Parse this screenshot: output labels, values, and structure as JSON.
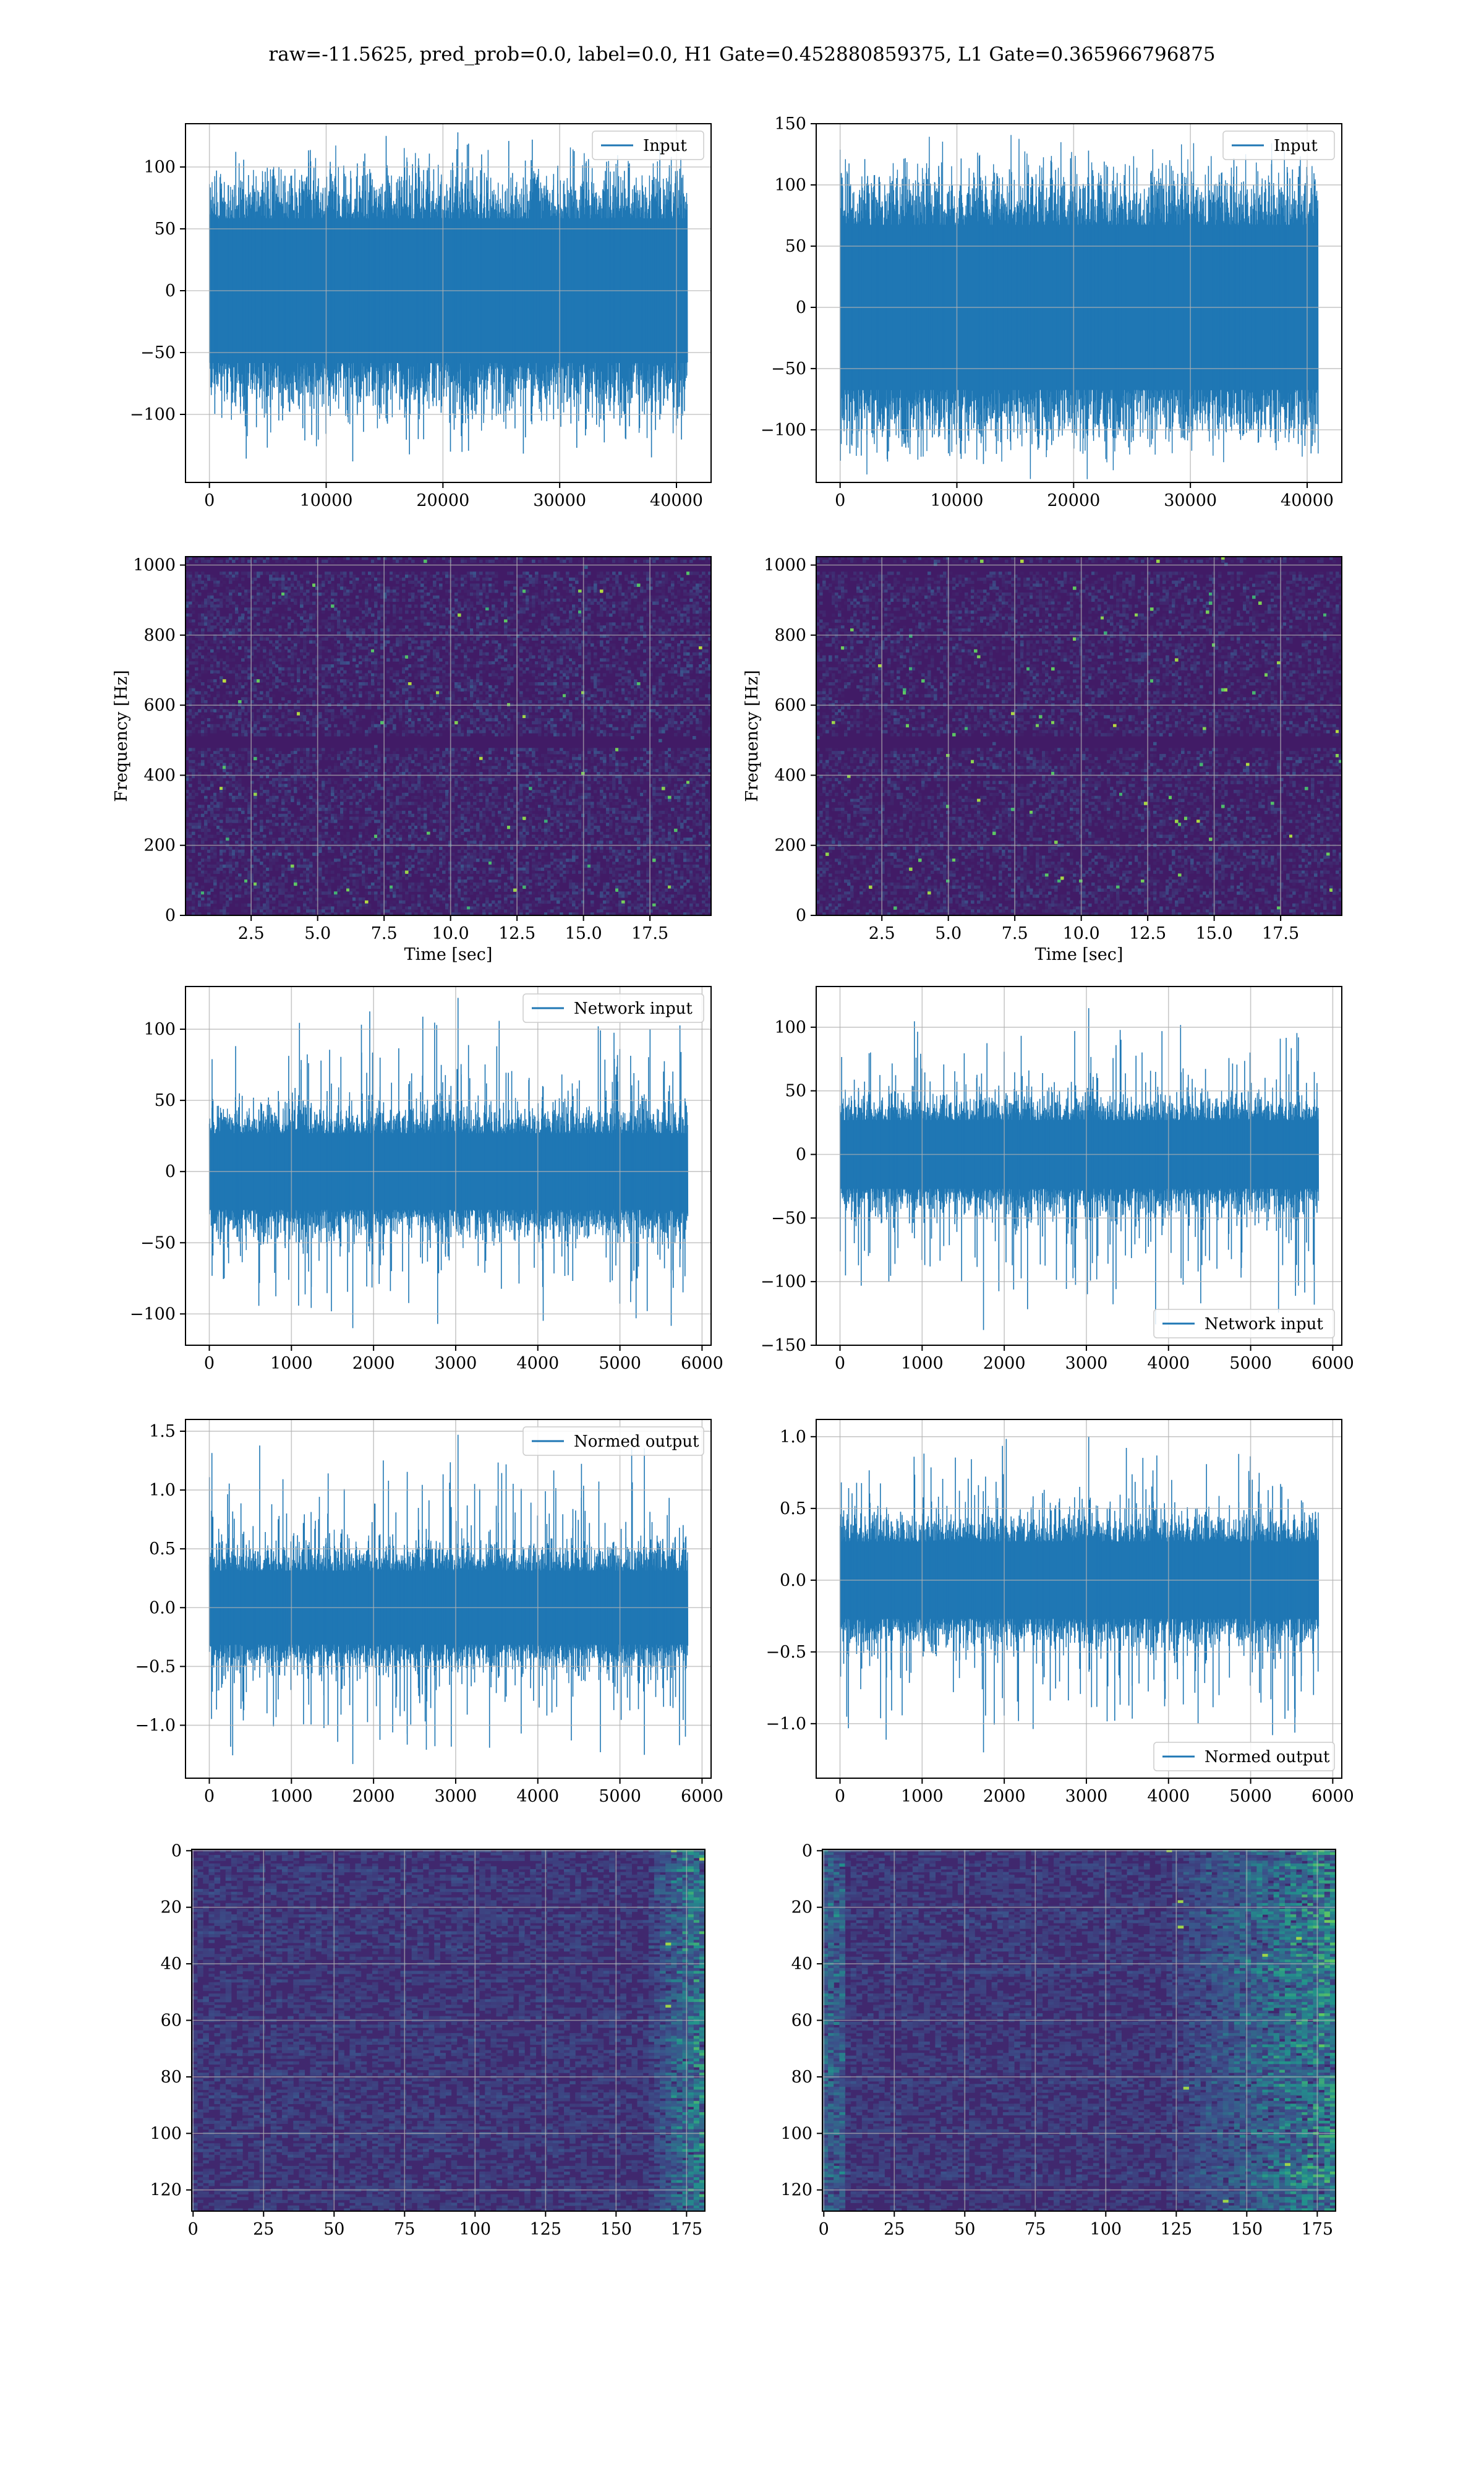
{
  "figure": {
    "suptitle": "raw=-11.5625, pred_prob=0.0, label=0.0, H1 Gate=0.452880859375, L1 Gate=0.365966796875"
  },
  "colors": {
    "line": "#1f77b4",
    "grid": "#b0b0b0",
    "viridis_low": "#440154",
    "viridis_mid": "#21918c",
    "viridis_high": "#fde725"
  },
  "chart_data": [
    {
      "id": "h1-input",
      "type": "line",
      "title": "",
      "xlabel": "",
      "ylabel": "",
      "xlim": [
        -2048,
        42966
      ],
      "ylim": [
        -155,
        135
      ],
      "xticks": [
        0,
        10000,
        20000,
        30000,
        40000
      ],
      "xtick_labels": [
        "0",
        "10000",
        "20000",
        "30000",
        "40000"
      ],
      "yticks": [
        -100,
        -50,
        0,
        50,
        100
      ],
      "ytick_labels": [
        "−100",
        "−50",
        "0",
        "50",
        "100"
      ],
      "grid": true,
      "legend_position": "upper right",
      "series": [
        {
          "name": "Input",
          "x_start": 0,
          "x_end": 40918,
          "envelope_core": 65,
          "envelope_peak": 128,
          "envelope_trough": -138,
          "noise": "gaussian"
        }
      ]
    },
    {
      "id": "l1-input",
      "type": "line",
      "title": "",
      "xlabel": "",
      "ylabel": "",
      "xlim": [
        -2048,
        42966
      ],
      "ylim": [
        -143,
        150
      ],
      "xticks": [
        0,
        10000,
        20000,
        30000,
        40000
      ],
      "xtick_labels": [
        "0",
        "10000",
        "20000",
        "30000",
        "40000"
      ],
      "yticks": [
        -100,
        -50,
        0,
        50,
        100,
        150
      ],
      "ytick_labels": [
        "−100",
        "−50",
        "0",
        "50",
        "100",
        "150"
      ],
      "grid": true,
      "legend_position": "upper right",
      "series": [
        {
          "name": "Input",
          "x_start": 0,
          "x_end": 40918,
          "envelope_core": 75,
          "envelope_peak": 128,
          "envelope_trough": -128,
          "noise": "gaussian"
        }
      ]
    },
    {
      "id": "h1-spectrogram",
      "type": "heatmap",
      "title": "",
      "xlabel": "Time [sec]",
      "ylabel": "Frequency [Hz]",
      "xlim": [
        0.03,
        19.8
      ],
      "ylim": [
        0,
        1024
      ],
      "xticks": [
        2.5,
        5.0,
        7.5,
        10.0,
        12.5,
        15.0,
        17.5
      ],
      "xtick_labels": [
        "2.5",
        "5.0",
        "7.5",
        "10.0",
        "12.5",
        "15.0",
        "17.5"
      ],
      "yticks": [
        0,
        200,
        400,
        600,
        800,
        1000
      ],
      "ytick_labels": [
        "0",
        "200",
        "400",
        "600",
        "800",
        "1000"
      ],
      "grid": true,
      "colormap": "viridis",
      "dark_bands_hz": [
        500,
        1000
      ],
      "mean_intensity": 0.16
    },
    {
      "id": "l1-spectrogram",
      "type": "heatmap",
      "title": "",
      "xlabel": "Time [sec]",
      "ylabel": "Frequency [Hz]",
      "xlim": [
        0.03,
        19.8
      ],
      "ylim": [
        0,
        1024
      ],
      "xticks": [
        2.5,
        5.0,
        7.5,
        10.0,
        12.5,
        15.0,
        17.5
      ],
      "xtick_labels": [
        "2.5",
        "5.0",
        "7.5",
        "10.0",
        "12.5",
        "15.0",
        "17.5"
      ],
      "yticks": [
        0,
        200,
        400,
        600,
        800,
        1000
      ],
      "ytick_labels": [
        "0",
        "200",
        "400",
        "600",
        "800",
        "1000"
      ],
      "grid": true,
      "colormap": "viridis",
      "dark_bands_hz": [
        500,
        1000
      ],
      "mean_intensity": 0.15
    },
    {
      "id": "h1-network-input",
      "type": "line",
      "title": "",
      "xlabel": "",
      "ylabel": "",
      "xlim": [
        -290,
        6110
      ],
      "ylim": [
        -122,
        130
      ],
      "xticks": [
        0,
        1000,
        2000,
        3000,
        4000,
        5000,
        6000
      ],
      "xtick_labels": [
        "0",
        "1000",
        "2000",
        "3000",
        "4000",
        "5000",
        "6000"
      ],
      "yticks": [
        -100,
        -50,
        0,
        50,
        100
      ],
      "ytick_labels": [
        "−100",
        "−50",
        "0",
        "50",
        "100"
      ],
      "grid": true,
      "legend_position": "upper right",
      "series": [
        {
          "name": "Network input",
          "x_start": 0,
          "x_end": 5824,
          "envelope_core": 30,
          "envelope_peak": 122,
          "envelope_trough": -110,
          "noise": "gaussian"
        }
      ]
    },
    {
      "id": "l1-network-input",
      "type": "line",
      "title": "",
      "xlabel": "",
      "ylabel": "",
      "xlim": [
        -290,
        6110
      ],
      "ylim": [
        -150,
        132
      ],
      "xticks": [
        0,
        1000,
        2000,
        3000,
        4000,
        5000,
        6000
      ],
      "xtick_labels": [
        "0",
        "1000",
        "2000",
        "3000",
        "4000",
        "5000",
        "6000"
      ],
      "yticks": [
        -150,
        -100,
        -50,
        0,
        50,
        100
      ],
      "ytick_labels": [
        "−150",
        "−100",
        "−50",
        "0",
        "50",
        "100"
      ],
      "grid": true,
      "legend_position": "lower right",
      "series": [
        {
          "name": "Network input",
          "x_start": 0,
          "x_end": 5824,
          "envelope_core": 30,
          "envelope_peak": 115,
          "envelope_trough": -138,
          "noise": "gaussian"
        }
      ]
    },
    {
      "id": "h1-normed-output",
      "type": "line",
      "title": "",
      "xlabel": "",
      "ylabel": "",
      "xlim": [
        -290,
        6110
      ],
      "ylim": [
        -1.45,
        1.6
      ],
      "xticks": [
        0,
        1000,
        2000,
        3000,
        4000,
        5000,
        6000
      ],
      "xtick_labels": [
        "0",
        "1000",
        "2000",
        "3000",
        "4000",
        "5000",
        "6000"
      ],
      "yticks": [
        -1.0,
        -0.5,
        0.0,
        0.5,
        1.0,
        1.5
      ],
      "ytick_labels": [
        "−1.0",
        "−0.5",
        "0.0",
        "0.5",
        "1.0",
        "1.5"
      ],
      "grid": true,
      "legend_position": "upper right",
      "series": [
        {
          "name": "Normed output",
          "x_start": 0,
          "x_end": 5824,
          "envelope_core": 0.35,
          "envelope_peak": 1.47,
          "envelope_trough": -1.33,
          "noise": "gaussian"
        }
      ]
    },
    {
      "id": "l1-normed-output",
      "type": "line",
      "title": "",
      "xlabel": "",
      "ylabel": "",
      "xlim": [
        -290,
        6110
      ],
      "ylim": [
        -1.38,
        1.12
      ],
      "xticks": [
        0,
        1000,
        2000,
        3000,
        4000,
        5000,
        6000
      ],
      "xtick_labels": [
        "0",
        "1000",
        "2000",
        "3000",
        "4000",
        "5000",
        "6000"
      ],
      "yticks": [
        -1.0,
        -0.5,
        0.0,
        0.5,
        1.0
      ],
      "ytick_labels": [
        "−1.0",
        "−0.5",
        "0.0",
        "0.5",
        "1.0"
      ],
      "grid": true,
      "legend_position": "lower right",
      "series": [
        {
          "name": "Normed output",
          "x_start": 0,
          "x_end": 5824,
          "envelope_core": 0.3,
          "envelope_peak": 1.0,
          "envelope_trough": -1.2,
          "noise": "gaussian"
        }
      ]
    },
    {
      "id": "h1-feature-map",
      "type": "heatmap",
      "title": "",
      "xlabel": "",
      "ylabel": "",
      "xlim": [
        -0.5,
        181.5
      ],
      "ylim": [
        127.5,
        -0.5
      ],
      "xticks": [
        0,
        25,
        50,
        75,
        100,
        125,
        150,
        175
      ],
      "xtick_labels": [
        "0",
        "25",
        "50",
        "75",
        "100",
        "125",
        "150",
        "175"
      ],
      "yticks": [
        0,
        20,
        40,
        60,
        80,
        100,
        120
      ],
      "ytick_labels": [
        "0",
        "20",
        "40",
        "60",
        "80",
        "100",
        "120"
      ],
      "grid": true,
      "colormap": "viridis",
      "rows": 128,
      "cols": 182,
      "bright_columns": [
        160,
        182
      ],
      "bright_edge": "right"
    },
    {
      "id": "l1-feature-map",
      "type": "heatmap",
      "title": "",
      "xlabel": "",
      "ylabel": "",
      "xlim": [
        -0.5,
        181.5
      ],
      "ylim": [
        127.5,
        -0.5
      ],
      "xticks": [
        0,
        25,
        50,
        75,
        100,
        125,
        150,
        175
      ],
      "xtick_labels": [
        "0",
        "25",
        "50",
        "75",
        "100",
        "125",
        "150",
        "175"
      ],
      "yticks": [
        0,
        20,
        40,
        60,
        80,
        100,
        120
      ],
      "ytick_labels": [
        "0",
        "20",
        "40",
        "60",
        "80",
        "100",
        "120"
      ],
      "grid": true,
      "colormap": "viridis",
      "rows": 128,
      "cols": 182,
      "bright_columns": [
        120,
        182
      ],
      "bright_edge": "both"
    }
  ]
}
